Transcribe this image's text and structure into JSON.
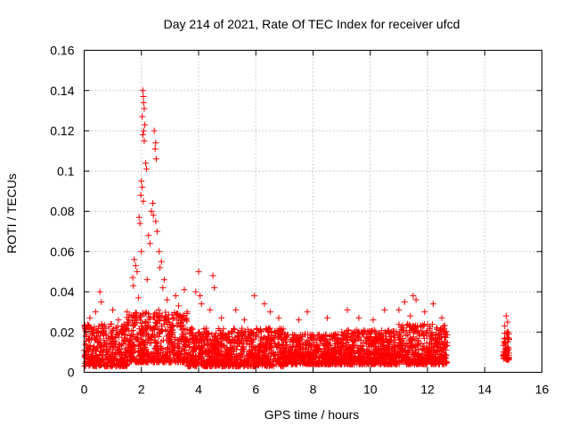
{
  "chart_data": {
    "type": "scatter",
    "title": "Day 214 of 2021, Rate Of TEC Index for receiver ufcd",
    "xlabel": "GPS time / hours",
    "ylabel": "ROTI / TECUs",
    "xlim": [
      0,
      16
    ],
    "ylim": [
      0,
      0.16
    ],
    "xticks": [
      "0",
      "2",
      "4",
      "6",
      "8",
      "10",
      "12",
      "14",
      "16"
    ],
    "yticks": [
      "0",
      "0.02",
      "0.04",
      "0.06",
      "0.08",
      "0.1",
      "0.12",
      "0.14",
      "0.16"
    ],
    "grid": true,
    "marker": "plus",
    "color": "#ff0000",
    "series": [
      {
        "name": "ROTI",
        "points": [
          [
            2.05,
            0.14
          ],
          [
            2.07,
            0.137
          ],
          [
            2.08,
            0.134
          ],
          [
            2.1,
            0.131
          ],
          [
            2.03,
            0.127
          ],
          [
            2.12,
            0.123
          ],
          [
            2.08,
            0.12
          ],
          [
            2.05,
            0.118
          ],
          [
            2.1,
            0.115
          ],
          [
            2.45,
            0.12
          ],
          [
            2.5,
            0.114
          ],
          [
            2.48,
            0.111
          ],
          [
            2.52,
            0.106
          ],
          [
            2.15,
            0.104
          ],
          [
            2.18,
            0.101
          ],
          [
            2.0,
            0.095
          ],
          [
            2.03,
            0.092
          ],
          [
            1.98,
            0.088
          ],
          [
            2.07,
            0.085
          ],
          [
            2.4,
            0.084
          ],
          [
            2.35,
            0.08
          ],
          [
            2.42,
            0.078
          ],
          [
            1.92,
            0.077
          ],
          [
            1.95,
            0.074
          ],
          [
            2.5,
            0.075
          ],
          [
            2.55,
            0.07
          ],
          [
            2.25,
            0.068
          ],
          [
            2.3,
            0.064
          ],
          [
            2.0,
            0.06
          ],
          [
            2.62,
            0.06
          ],
          [
            1.75,
            0.056
          ],
          [
            1.8,
            0.053
          ],
          [
            1.85,
            0.05
          ],
          [
            2.7,
            0.055
          ],
          [
            2.65,
            0.052
          ],
          [
            1.7,
            0.047
          ],
          [
            2.8,
            0.046
          ],
          [
            2.2,
            0.046
          ],
          [
            2.75,
            0.042
          ],
          [
            1.72,
            0.043
          ],
          [
            4.0,
            0.05
          ],
          [
            4.5,
            0.048
          ],
          [
            0.55,
            0.04
          ],
          [
            3.5,
            0.041
          ],
          [
            3.9,
            0.04
          ],
          [
            4.05,
            0.038
          ],
          [
            4.55,
            0.042
          ],
          [
            3.2,
            0.038
          ],
          [
            5.95,
            0.038
          ],
          [
            11.5,
            0.038
          ],
          [
            0.6,
            0.035
          ],
          [
            2.9,
            0.036
          ],
          [
            1.9,
            0.037
          ],
          [
            3.3,
            0.033
          ],
          [
            4.1,
            0.034
          ],
          [
            6.3,
            0.034
          ],
          [
            11.2,
            0.035
          ],
          [
            11.6,
            0.036
          ],
          [
            12.2,
            0.034
          ],
          [
            0.4,
            0.03
          ],
          [
            1.0,
            0.031
          ],
          [
            1.5,
            0.03
          ],
          [
            2.6,
            0.031
          ],
          [
            3.6,
            0.03
          ],
          [
            4.4,
            0.031
          ],
          [
            5.3,
            0.031
          ],
          [
            6.5,
            0.03
          ],
          [
            7.8,
            0.03
          ],
          [
            9.2,
            0.031
          ],
          [
            10.5,
            0.031
          ],
          [
            11.0,
            0.031
          ],
          [
            11.9,
            0.03
          ],
          [
            0.2,
            0.027
          ],
          [
            1.2,
            0.026
          ],
          [
            2.85,
            0.027
          ],
          [
            4.8,
            0.027
          ],
          [
            5.6,
            0.026
          ],
          [
            6.8,
            0.027
          ],
          [
            7.5,
            0.026
          ],
          [
            8.5,
            0.027
          ],
          [
            9.6,
            0.027
          ],
          [
            10.1,
            0.026
          ],
          [
            11.4,
            0.028
          ],
          [
            12.5,
            0.027
          ],
          [
            14.75,
            0.028
          ],
          [
            14.8,
            0.025
          ],
          [
            14.7,
            0.023
          ],
          [
            14.78,
            0.02
          ],
          [
            14.82,
            0.017
          ],
          [
            14.72,
            0.014
          ],
          [
            14.8,
            0.011
          ],
          [
            14.75,
            0.008
          ]
        ]
      }
    ],
    "dense_band": [
      {
        "x0": 0.0,
        "x1": 1.5,
        "lo": 0.003,
        "hi": 0.024
      },
      {
        "x0": 1.5,
        "x1": 3.6,
        "lo": 0.005,
        "hi": 0.03
      },
      {
        "x0": 3.6,
        "x1": 7.0,
        "lo": 0.003,
        "hi": 0.022
      },
      {
        "x0": 7.0,
        "x1": 9.0,
        "lo": 0.004,
        "hi": 0.019
      },
      {
        "x0": 9.0,
        "x1": 11.0,
        "lo": 0.004,
        "hi": 0.021
      },
      {
        "x0": 11.0,
        "x1": 12.7,
        "lo": 0.004,
        "hi": 0.024
      },
      {
        "x0": 14.65,
        "x1": 14.85,
        "lo": 0.006,
        "hi": 0.02
      }
    ]
  }
}
